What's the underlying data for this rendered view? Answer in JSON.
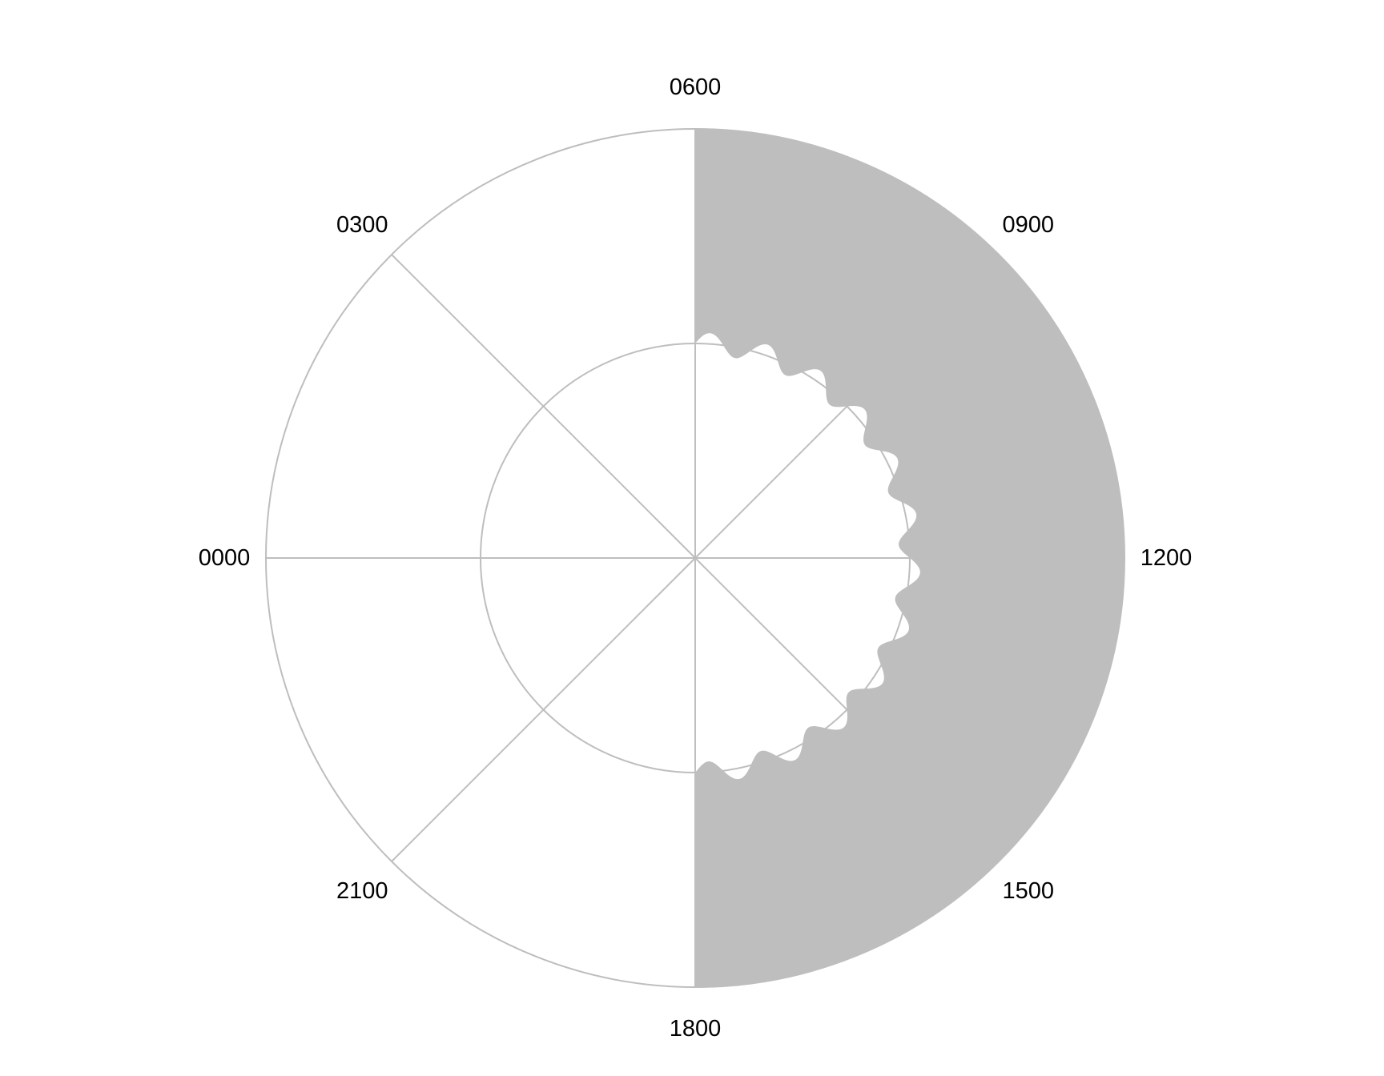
{
  "chart_data": {
    "type": "area",
    "coordinate_system": "polar",
    "title": "",
    "xlabel": "",
    "ylabel": "",
    "angle_axis": {
      "unit": "time of day (hours)",
      "range": [
        0,
        24
      ],
      "tick_labels": [
        "0000",
        "0300",
        "0600",
        "0900",
        "1200",
        "1500",
        "1800",
        "2100"
      ],
      "tick_values": [
        0,
        3,
        6,
        9,
        12,
        15,
        18,
        21
      ],
      "direction": "0000 at left, 0600 at top, 1200 at right, 1800 at bottom (clockwise)"
    },
    "radial_axis": {
      "range": [
        0,
        1
      ],
      "gridlines": [
        0.5,
        1.0
      ],
      "labels_shown": false
    },
    "series": [
      {
        "shaded_band": {
          "from_hour": 6,
          "to_hour": 18,
          "inner_radius_mean": 0.5,
          "inner_radius_wave_amplitude": 0.025,
          "inner_radius_wave_cycles": 24,
          "outer_radius": 1.0,
          "color": "#bebebe"
        }
      }
    ],
    "grid": true,
    "legend": "none"
  }
}
